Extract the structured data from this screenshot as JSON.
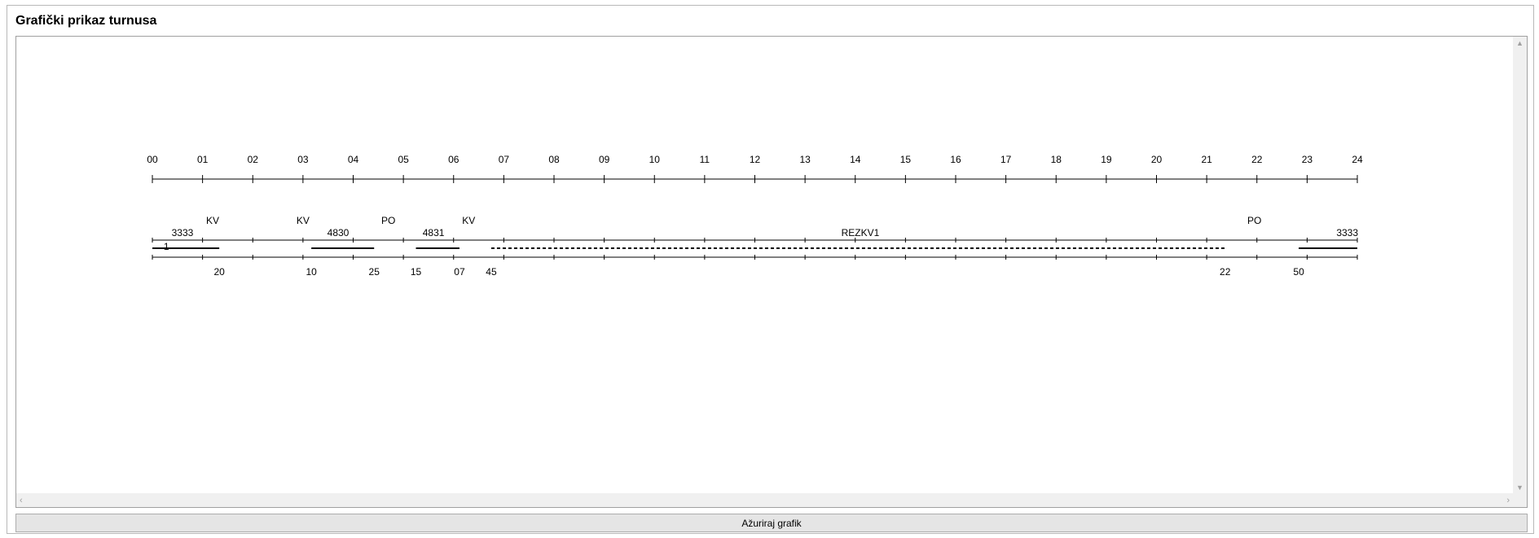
{
  "panel": {
    "title": "Grafički prikaz turnusa"
  },
  "button": {
    "update_label": "Ažuriraj grafik"
  },
  "icons": {
    "scroll_up": "chevron-up-icon",
    "scroll_down": "chevron-down-icon",
    "scroll_left": "chevron-left-icon",
    "scroll_right": "chevron-right-icon"
  },
  "chart_data": {
    "type": "timeline",
    "x_range": [
      0,
      24
    ],
    "hour_labels": [
      "00",
      "01",
      "02",
      "03",
      "04",
      "05",
      "06",
      "07",
      "08",
      "09",
      "10",
      "11",
      "12",
      "13",
      "14",
      "15",
      "16",
      "17",
      "18",
      "19",
      "20",
      "21",
      "22",
      "23",
      "24"
    ],
    "activity_labels": [
      {
        "hour": 1.2,
        "text": "KV"
      },
      {
        "hour": 3.0,
        "text": "KV"
      },
      {
        "hour": 4.7,
        "text": "PO"
      },
      {
        "hour": 6.3,
        "text": "KV"
      },
      {
        "hour": 21.95,
        "text": "PO"
      }
    ],
    "train_labels": [
      {
        "hour": 0.6,
        "text": "3333"
      },
      {
        "hour": 3.7,
        "text": "4830"
      },
      {
        "hour": 5.6,
        "text": "4831"
      },
      {
        "hour": 14.1,
        "text": "REZKV1"
      },
      {
        "hour": 23.8,
        "text": "3333"
      }
    ],
    "small_label": {
      "hour": 0.28,
      "text": "1"
    },
    "segments": [
      {
        "start": 0.0,
        "end": 1.333,
        "style": "solid"
      },
      {
        "start": 3.167,
        "end": 4.417,
        "style": "solid"
      },
      {
        "start": 5.25,
        "end": 6.117,
        "style": "solid"
      },
      {
        "start": 6.75,
        "end": 21.367,
        "style": "dashed"
      },
      {
        "start": 22.833,
        "end": 24.0,
        "style": "solid"
      }
    ],
    "minute_labels": [
      {
        "hour": 1.333,
        "text": "20"
      },
      {
        "hour": 3.167,
        "text": "10"
      },
      {
        "hour": 4.417,
        "text": "25"
      },
      {
        "hour": 5.25,
        "text": "15"
      },
      {
        "hour": 6.117,
        "text": "07"
      },
      {
        "hour": 6.75,
        "text": "45"
      },
      {
        "hour": 21.367,
        "text": "22"
      },
      {
        "hour": 22.833,
        "text": "50"
      }
    ]
  }
}
